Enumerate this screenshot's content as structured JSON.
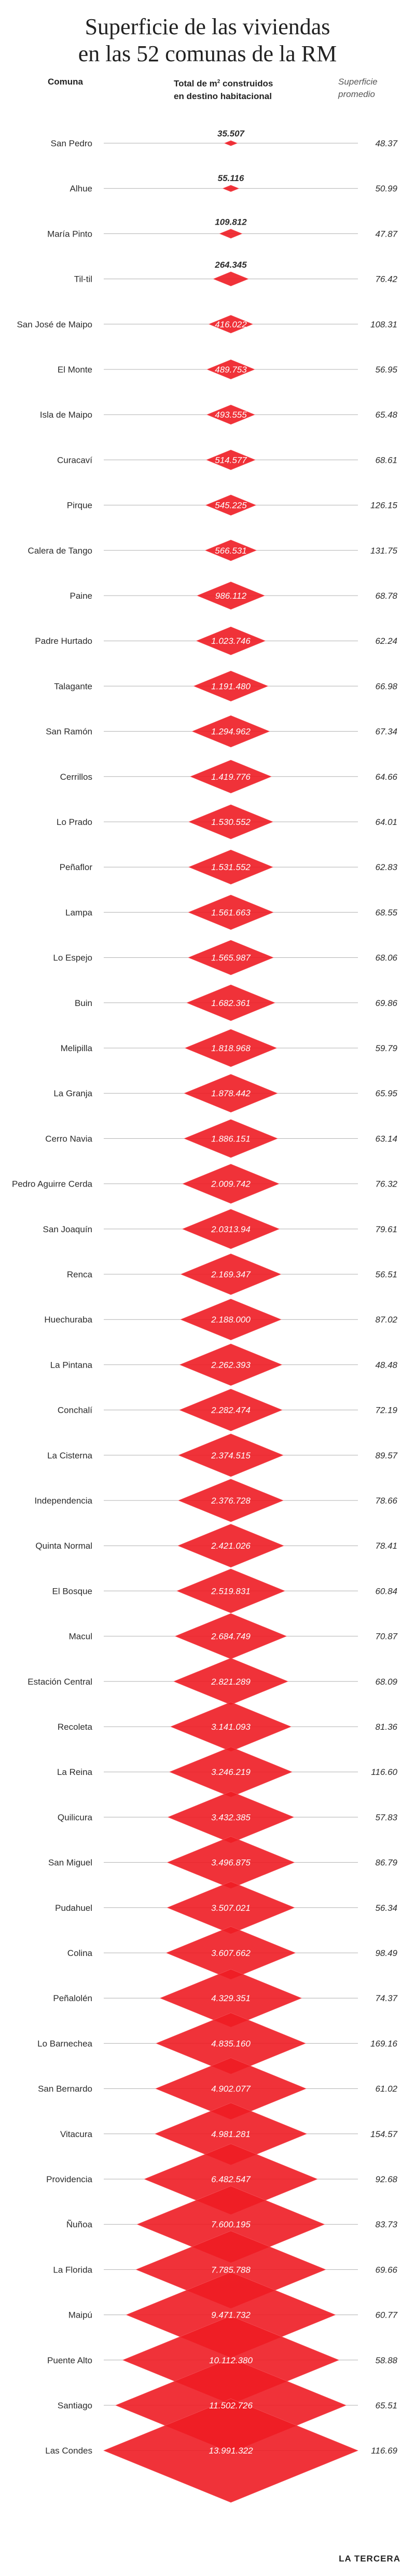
{
  "title_line1": "Superficie de las viviendas",
  "title_line2": "en las 52 comunas de la RM",
  "headers": {
    "comuna": "Comuna",
    "total_line1_pre": "Total de m",
    "total_line1_sup": "2",
    "total_line1_post": " construidos",
    "total_line2": "en destino habitacional",
    "superficie_line1": "Superficie",
    "superficie_line2": "promedio"
  },
  "colors": {
    "diamond": "#ee1c24",
    "diamond_light": "#f5545a",
    "axis_line": "#b0b0b0",
    "text_dark": "#2b2b2b",
    "value_on_red": "#ffffff"
  },
  "chart_data": {
    "type": "diamond-area",
    "rows": [
      {
        "comuna": "San Pedro",
        "total": "35.507",
        "total_num": 35507,
        "superficie": "48.37"
      },
      {
        "comuna": "Alhue",
        "total": "55.116",
        "total_num": 55116,
        "superficie": "50.99"
      },
      {
        "comuna": "María Pinto",
        "total": "109.812",
        "total_num": 109812,
        "superficie": "47.87"
      },
      {
        "comuna": "Til-til",
        "total": "264.345",
        "total_num": 264345,
        "superficie": "76.42"
      },
      {
        "comuna": "San José de Maipo",
        "total": "416.022",
        "total_num": 416022,
        "superficie": "108.31"
      },
      {
        "comuna": "El Monte",
        "total": "489.753",
        "total_num": 489753,
        "superficie": "56.95"
      },
      {
        "comuna": "Isla de Maipo",
        "total": "493.555",
        "total_num": 493555,
        "superficie": "65.48"
      },
      {
        "comuna": "Curacaví",
        "total": "514.577",
        "total_num": 514577,
        "superficie": "68.61"
      },
      {
        "comuna": "Pirque",
        "total": "545.225",
        "total_num": 545225,
        "superficie": "126.15"
      },
      {
        "comuna": "Calera de Tango",
        "total": "566.531",
        "total_num": 566531,
        "superficie": "131.75"
      },
      {
        "comuna": "Paine",
        "total": "986.112",
        "total_num": 986112,
        "superficie": "68.78"
      },
      {
        "comuna": "Padre Hurtado",
        "total": "1.023.746",
        "total_num": 1023746,
        "superficie": "62.24"
      },
      {
        "comuna": "Talagante",
        "total": "1.191.480",
        "total_num": 1191480,
        "superficie": "66.98"
      },
      {
        "comuna": "San Ramón",
        "total": "1.294.962",
        "total_num": 1294962,
        "superficie": "67.34"
      },
      {
        "comuna": "Cerrillos",
        "total": "1.419.776",
        "total_num": 1419776,
        "superficie": "64.66"
      },
      {
        "comuna": "Lo Prado",
        "total": "1.530.552",
        "total_num": 1530552,
        "superficie": "64.01"
      },
      {
        "comuna": "Peñaflor",
        "total": "1.531.552",
        "total_num": 1531552,
        "superficie": "62.83"
      },
      {
        "comuna": "Lampa",
        "total": "1.561.663",
        "total_num": 1561663,
        "superficie": "68.55"
      },
      {
        "comuna": "Lo Espejo",
        "total": "1.565.987",
        "total_num": 1565987,
        "superficie": "68.06"
      },
      {
        "comuna": "Buin",
        "total": "1.682.361",
        "total_num": 1682361,
        "superficie": "69.86"
      },
      {
        "comuna": "Melipilla",
        "total": "1.818.968",
        "total_num": 1818968,
        "superficie": "59.79"
      },
      {
        "comuna": "La Granja",
        "total": "1.878.442",
        "total_num": 1878442,
        "superficie": "65.95"
      },
      {
        "comuna": "Cerro Navia",
        "total": "1.886.151",
        "total_num": 1886151,
        "superficie": "63.14"
      },
      {
        "comuna": "Pedro Aguirre Cerda",
        "total": "2.009.742",
        "total_num": 2009742,
        "superficie": "76.32"
      },
      {
        "comuna": "San Joaquín",
        "total": "2.0313.94",
        "total_num": 2031394,
        "superficie": "79.61"
      },
      {
        "comuna": "Renca",
        "total": "2.169.347",
        "total_num": 2169347,
        "superficie": "56.51"
      },
      {
        "comuna": "Huechuraba",
        "total": "2.188.000",
        "total_num": 2188000,
        "superficie": "87.02"
      },
      {
        "comuna": "La Pintana",
        "total": "2.262.393",
        "total_num": 2262393,
        "superficie": "48.48"
      },
      {
        "comuna": "Conchalí",
        "total": "2.282.474",
        "total_num": 2282474,
        "superficie": "72.19"
      },
      {
        "comuna": "La Cisterna",
        "total": "2.374.515",
        "total_num": 2374515,
        "superficie": "89.57"
      },
      {
        "comuna": "Independencia",
        "total": "2.376.728",
        "total_num": 2376728,
        "superficie": "78.66"
      },
      {
        "comuna": "Quinta Normal",
        "total": "2.421.026",
        "total_num": 2421026,
        "superficie": "78.41"
      },
      {
        "comuna": "El Bosque",
        "total": "2.519.831",
        "total_num": 2519831,
        "superficie": "60.84"
      },
      {
        "comuna": "Macul",
        "total": "2.684.749",
        "total_num": 2684749,
        "superficie": "70.87"
      },
      {
        "comuna": "Estación Central",
        "total": "2.821.289",
        "total_num": 2821289,
        "superficie": "68.09"
      },
      {
        "comuna": "Recoleta",
        "total": "3.141.093",
        "total_num": 3141093,
        "superficie": "81.36"
      },
      {
        "comuna": "La Reina",
        "total": "3.246.219",
        "total_num": 3246219,
        "superficie": "116.60"
      },
      {
        "comuna": "Quilicura",
        "total": "3.432.385",
        "total_num": 3432385,
        "superficie": "57.83"
      },
      {
        "comuna": "San Miguel",
        "total": "3.496.875",
        "total_num": 3496875,
        "superficie": "86.79"
      },
      {
        "comuna": "Pudahuel",
        "total": "3.507.021",
        "total_num": 3507021,
        "superficie": "56.34"
      },
      {
        "comuna": "Colina",
        "total": "3.607.662",
        "total_num": 3607662,
        "superficie": "98.49"
      },
      {
        "comuna": "Peñalolén",
        "total": "4.329.351",
        "total_num": 4329351,
        "superficie": "74.37"
      },
      {
        "comuna": "Lo Barnechea",
        "total": "4.835.160",
        "total_num": 4835160,
        "superficie": "169.16"
      },
      {
        "comuna": "San Bernardo",
        "total": "4.902.077",
        "total_num": 4902077,
        "superficie": "61.02"
      },
      {
        "comuna": "Vitacura",
        "total": "4.981.281",
        "total_num": 4981281,
        "superficie": "154.57"
      },
      {
        "comuna": "Providencia",
        "total": "6.482.547",
        "total_num": 6482547,
        "superficie": "92.68"
      },
      {
        "comuna": "Ñuñoa",
        "total": "7.600.195",
        "total_num": 7600195,
        "superficie": "83.73"
      },
      {
        "comuna": "La Florida",
        "total": "7.785.788",
        "total_num": 7785788,
        "superficie": "69.66"
      },
      {
        "comuna": "Maipú",
        "total": "9.471.732",
        "total_num": 9471732,
        "superficie": "60.77"
      },
      {
        "comuna": "Puente Alto",
        "total": "10.112.380",
        "total_num": 10112380,
        "superficie": "58.88"
      },
      {
        "comuna": "Santiago",
        "total": "11.502.726",
        "total_num": 11502726,
        "superficie": "65.51"
      },
      {
        "comuna": "Las Condes",
        "total": "13.991.322",
        "total_num": 13991322,
        "superficie": "116.69"
      }
    ]
  },
  "footer_logo": "LA TERCERA"
}
